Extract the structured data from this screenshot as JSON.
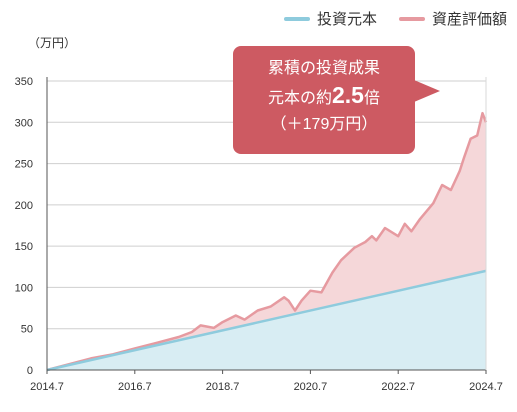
{
  "legend": [
    {
      "label": "投資元本",
      "color": "#8ecbdd"
    },
    {
      "label": "資産評価額",
      "color": "#e69aa0"
    }
  ],
  "callout": {
    "line1": "累積の投資成果",
    "line2_prefix": "元本の約",
    "line2_multiple": "2.5",
    "line2_suffix": "倍",
    "line3": "（＋179万円）",
    "color": "#cd5a62"
  },
  "chart_data": {
    "type": "area",
    "yunit": "（万円）",
    "xlabel": "",
    "ylabel": "",
    "xlim": [
      2014.5,
      2024.5
    ],
    "ylim": [
      0,
      350
    ],
    "yticks": [
      0,
      50,
      100,
      150,
      200,
      250,
      300,
      350
    ],
    "xticks": [
      "2014.7",
      "2016.7",
      "2018.7",
      "2020.7",
      "2022.7",
      "2024.7"
    ],
    "grid": true,
    "legend_position": "top-right",
    "series": [
      {
        "name": "投資元本",
        "color": "#8ecbdd",
        "fill": "#d8edf3",
        "x": [
          2014.5,
          2024.5
        ],
        "y": [
          0,
          120
        ]
      },
      {
        "name": "資産評価額",
        "color": "#e69aa0",
        "fill": "#f5d7d9",
        "x": [
          2014.5,
          2015.0,
          2015.5,
          2016.0,
          2016.5,
          2017.0,
          2017.5,
          2017.8,
          2018.0,
          2018.3,
          2018.5,
          2018.8,
          2019.0,
          2019.3,
          2019.6,
          2019.9,
          2020.0,
          2020.15,
          2020.3,
          2020.5,
          2020.75,
          2021.0,
          2021.2,
          2021.5,
          2021.75,
          2021.9,
          2022.0,
          2022.2,
          2022.5,
          2022.65,
          2022.8,
          2023.0,
          2023.3,
          2023.5,
          2023.7,
          2023.9,
          2024.0,
          2024.15,
          2024.3,
          2024.42,
          2024.5
        ],
        "y": [
          0,
          7,
          14,
          19,
          26,
          33,
          40,
          46,
          54,
          51,
          58,
          66,
          61,
          72,
          77,
          88,
          84,
          72,
          84,
          96,
          94,
          118,
          133,
          148,
          155,
          162,
          157,
          172,
          162,
          177,
          168,
          183,
          202,
          224,
          218,
          241,
          257,
          280,
          284,
          311,
          300
        ]
      }
    ]
  }
}
